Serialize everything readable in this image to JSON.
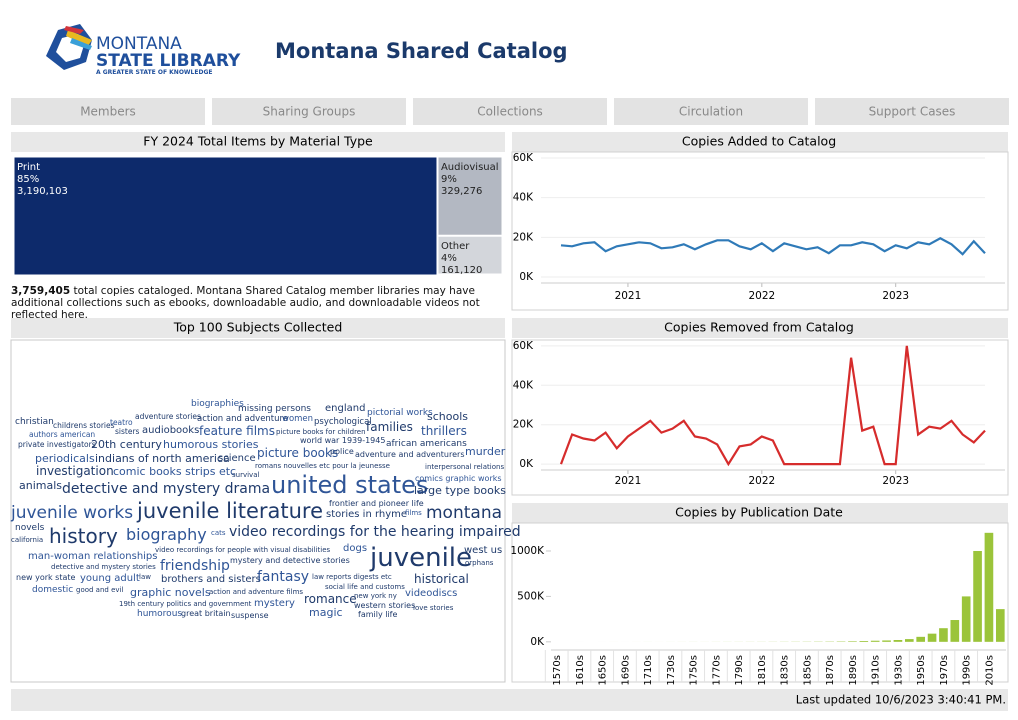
{
  "header": {
    "logo_line1": "MONTANA",
    "logo_line2": "STATE LIBRARY",
    "logo_tagline": "A GREATER STATE OF KNOWLEDGE",
    "title": "Montana Shared Catalog"
  },
  "nav": [
    "Members",
    "Sharing Groups",
    "Collections",
    "Circulation",
    "Support Cases"
  ],
  "note": {
    "total": "3,759,405",
    "text": " total copies cataloged. Montana Shared Catalog member libraries may have additional collections such as ebooks, downloadable audio, and downloadable videos not reflected here."
  },
  "word_cloud": {
    "title": "Top 100 Subjects Collected",
    "words": [
      "biographies",
      "missing persons",
      "england",
      "pictorial works",
      "christian",
      "childrens stories",
      "teatro",
      "adventure stories",
      "action and adventure",
      "women",
      "psychological",
      "schools",
      "authors american",
      "sisters",
      "audiobooks",
      "feature films",
      "picture books for children",
      "families",
      "thrillers",
      "private investigators",
      "20th century",
      "humorous stories",
      "world war 1939-1945",
      "african americans",
      "periodicals",
      "indians of north america",
      "science",
      "picture books",
      "police",
      "adventure and adventurers",
      "murder",
      "romans nouvelles etc pour la jeunesse",
      "investigation",
      "comic books strips etc",
      "survival",
      "interpersonal relations",
      "comics graphic works",
      "animals",
      "detective and mystery drama",
      "united states",
      "large type books",
      "frontier and pioneer life",
      "juvenile works",
      "juvenile literature",
      "stories in rhyme",
      "films",
      "montana",
      "novels",
      "cats",
      "video recordings for the hearing impaired",
      "history",
      "biography",
      "california",
      "video recordings for people with visual disabilities",
      "dogs",
      "juvenile",
      "west us",
      "man-woman relationships",
      "mystery and detective stories",
      "orphans",
      "friendship",
      "detective and mystery stories",
      "new york state",
      "young adult",
      "law",
      "brothers and sisters",
      "fantasy",
      "law reports digests etc",
      "historical",
      "domestic",
      "good and evil",
      "social life and customs",
      "graphic novels",
      "action and adventure films",
      "new york ny",
      "videodiscs",
      "romance",
      "19th century politics and government",
      "mystery",
      "western stories",
      "love stories",
      "humorous",
      "great britain",
      "suspense",
      "magic",
      "family life"
    ]
  },
  "footer": "Last updated 10/6/2023 3:40:41 PM.",
  "chart_data": [
    {
      "type": "treemap",
      "title": "FY 2024 Total Items by Material Type",
      "categories": [
        "Print",
        "Audiovisual",
        "Other"
      ],
      "values": [
        3190103,
        329276,
        161120
      ],
      "percent_labels": [
        "85%",
        "9%",
        "4%"
      ],
      "value_labels": [
        "3,190,103",
        "329,276",
        "161,120"
      ],
      "colors": [
        "#0d2a6b",
        "#b3b8c2",
        "#d3d6db"
      ]
    },
    {
      "type": "line",
      "title": "Copies Added to Catalog",
      "color": "#2f7ab8",
      "grid": true,
      "x": [
        2020.5,
        2020.583,
        2020.667,
        2020.75,
        2020.833,
        2020.917,
        2021,
        2021.083,
        2021.167,
        2021.25,
        2021.333,
        2021.417,
        2021.5,
        2021.583,
        2021.667,
        2021.75,
        2021.833,
        2021.917,
        2022,
        2022.083,
        2022.167,
        2022.25,
        2022.333,
        2022.417,
        2022.5,
        2022.583,
        2022.667,
        2022.75,
        2022.833,
        2022.917,
        2023,
        2023.083,
        2023.167,
        2023.25,
        2023.333,
        2023.417,
        2023.5,
        2023.583,
        2023.667
      ],
      "values": [
        16000,
        15500,
        17000,
        17500,
        13000,
        15500,
        16500,
        17500,
        17000,
        14500,
        15000,
        16500,
        14000,
        16500,
        18500,
        18500,
        15500,
        14000,
        17000,
        13000,
        17000,
        15500,
        14000,
        15000,
        12000,
        16000,
        16000,
        17500,
        16500,
        13000,
        16000,
        14500,
        17500,
        16500,
        19500,
        16500,
        11500,
        18000,
        12000
      ],
      "xlim": [
        2020.5,
        2023.667
      ],
      "xticks": [
        2021,
        2022,
        2023
      ],
      "ylim": [
        -3000,
        63000
      ],
      "yticks": [
        {
          "value": 0,
          "label": "0K"
        },
        {
          "value": 20000,
          "label": "20K"
        },
        {
          "value": 40000,
          "label": "40K"
        },
        {
          "value": 60000,
          "label": "60K"
        }
      ]
    },
    {
      "type": "line",
      "title": "Copies Removed from Catalog",
      "color": "#d62c2c",
      "grid": true,
      "x": [
        2020.5,
        2020.583,
        2020.667,
        2020.75,
        2020.833,
        2020.917,
        2021,
        2021.083,
        2021.167,
        2021.25,
        2021.333,
        2021.417,
        2021.5,
        2021.583,
        2021.667,
        2021.75,
        2021.833,
        2021.917,
        2022,
        2022.083,
        2022.167,
        2022.25,
        2022.333,
        2022.417,
        2022.5,
        2022.583,
        2022.667,
        2022.75,
        2022.833,
        2022.917,
        2023,
        2023.083,
        2023.167,
        2023.25,
        2023.333,
        2023.417,
        2023.5,
        2023.583,
        2023.667
      ],
      "values": [
        0,
        15000,
        13000,
        12000,
        16000,
        8000,
        14000,
        18000,
        22000,
        16000,
        18000,
        22000,
        14000,
        13000,
        10000,
        0,
        9000,
        10000,
        14000,
        12000,
        0,
        0,
        0,
        0,
        0,
        0,
        54000,
        17000,
        19000,
        0,
        0,
        60000,
        15000,
        19000,
        18000,
        22000,
        15000,
        11000,
        17000
      ],
      "xlim": [
        2020.5,
        2023.667
      ],
      "xticks": [
        2021,
        2022,
        2023
      ],
      "ylim": [
        -3000,
        63000
      ],
      "yticks": [
        {
          "value": 0,
          "label": "0K"
        },
        {
          "value": 20000,
          "label": "20K"
        },
        {
          "value": 40000,
          "label": "40K"
        },
        {
          "value": 60000,
          "label": "60K"
        }
      ]
    },
    {
      "type": "bar",
      "title": "Copies by Publication Date",
      "color": "#9bc43a",
      "categories": [
        "1570s",
        null,
        "1610s",
        null,
        "1650s",
        null,
        "1690s",
        null,
        "1710s",
        null,
        "1730s",
        null,
        "1750s",
        null,
        "1770s",
        null,
        "1790s",
        null,
        "1810s",
        null,
        "1830s",
        null,
        "1850s",
        null,
        "1870s",
        null,
        "1890s",
        null,
        "1910s",
        null,
        "1930s",
        null,
        "1950s",
        null,
        "1970s",
        null,
        "1990s",
        null,
        "2010s",
        null
      ],
      "values": [
        0,
        0,
        100,
        0,
        100,
        200,
        100,
        200,
        300,
        200,
        300,
        400,
        500,
        400,
        600,
        700,
        800,
        900,
        1000,
        1200,
        1400,
        1700,
        2000,
        2500,
        3000,
        4000,
        6000,
        9000,
        12000,
        15000,
        20000,
        30000,
        55000,
        90000,
        150000,
        240000,
        500000,
        1000000,
        1200000,
        360000
      ],
      "ylim": [
        -90000,
        1264000
      ],
      "yticks": [
        {
          "value": 0,
          "label": "0K"
        },
        {
          "value": 500000,
          "label": "500K"
        },
        {
          "value": 1000000,
          "label": "1000K"
        }
      ]
    }
  ]
}
